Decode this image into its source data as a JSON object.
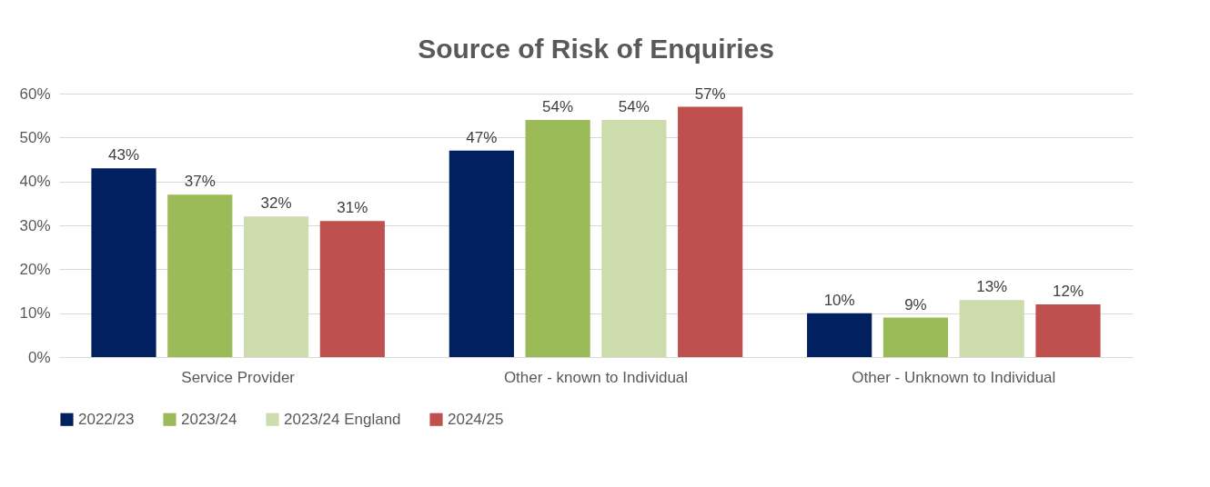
{
  "chart_data": {
    "type": "bar",
    "title": "Source of Risk of Enquiries",
    "categories": [
      "Service Provider",
      "Other - known to Individual",
      "Other - Unknown to Individual"
    ],
    "series": [
      {
        "name": "2022/23",
        "color": "#002060",
        "values": [
          43,
          47,
          10
        ],
        "value_labels": [
          "43%",
          "47%",
          "10%"
        ]
      },
      {
        "name": "2023/24",
        "color": "#9bbb59",
        "values": [
          37,
          54,
          9
        ],
        "value_labels": [
          "37%",
          "54%",
          "9%"
        ]
      },
      {
        "name": "2023/24 England",
        "color": "#cddcac",
        "values": [
          32,
          54,
          13
        ],
        "value_labels": [
          "32%",
          "54%",
          "13%"
        ]
      },
      {
        "name": "2024/25",
        "color": "#c0504d",
        "values": [
          31,
          57,
          12
        ],
        "value_labels": [
          "31%",
          "57%",
          "12%"
        ]
      }
    ],
    "ylim": [
      0,
      60
    ],
    "yticks": [
      {
        "value": 0,
        "label": "0%"
      },
      {
        "value": 10,
        "label": "10%"
      },
      {
        "value": 20,
        "label": "20%"
      },
      {
        "value": 30,
        "label": "30%"
      },
      {
        "value": 40,
        "label": "40%"
      },
      {
        "value": 50,
        "label": "50%"
      },
      {
        "value": 60,
        "label": "60%"
      }
    ],
    "grid": "y",
    "legend": "bottom"
  }
}
